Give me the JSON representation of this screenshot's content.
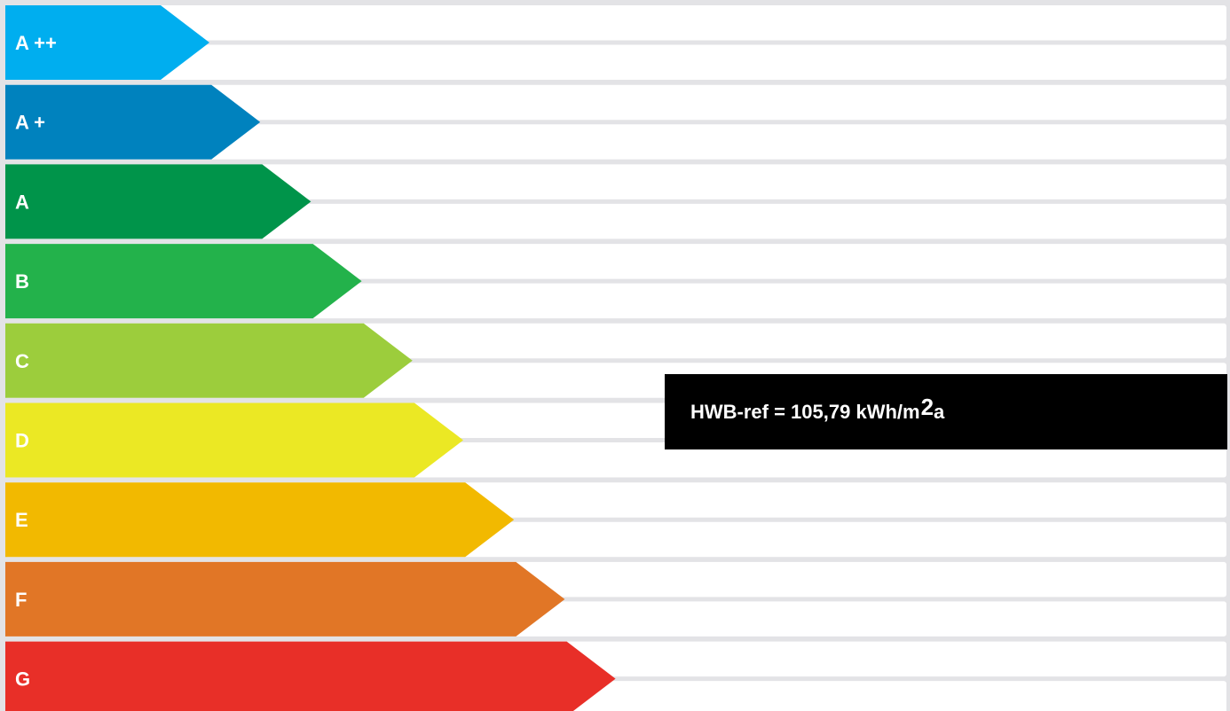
{
  "chart_data": {
    "type": "bar",
    "categories": [
      "A ++",
      "A +",
      "A",
      "B",
      "C",
      "D",
      "E",
      "F",
      "G"
    ],
    "colors": [
      "#00aeef",
      "#0082be",
      "#00944a",
      "#23b24b",
      "#9ccd3c",
      "#ebe824",
      "#f2b900",
      "#e17626",
      "#e82f28"
    ],
    "label_colors": [
      "#ffffff",
      "#ffffff",
      "#ffffff",
      "#ffffff",
      "#ffffff",
      "#ffffff",
      "#ffffff",
      "#ffffff",
      "#ffffff"
    ],
    "highlighted_class": "D",
    "title": "",
    "xlabel": "",
    "ylabel": ""
  },
  "value_box": {
    "text_main": "HWB-ref = 105,79 kWh/m",
    "text_superscript": "2",
    "text_unit_suffix": "a"
  },
  "colors": {
    "background": "#e3e3e6",
    "row_fill": "#ffffff",
    "value_box_bg": "#000000",
    "value_box_text": "#ffffff"
  }
}
